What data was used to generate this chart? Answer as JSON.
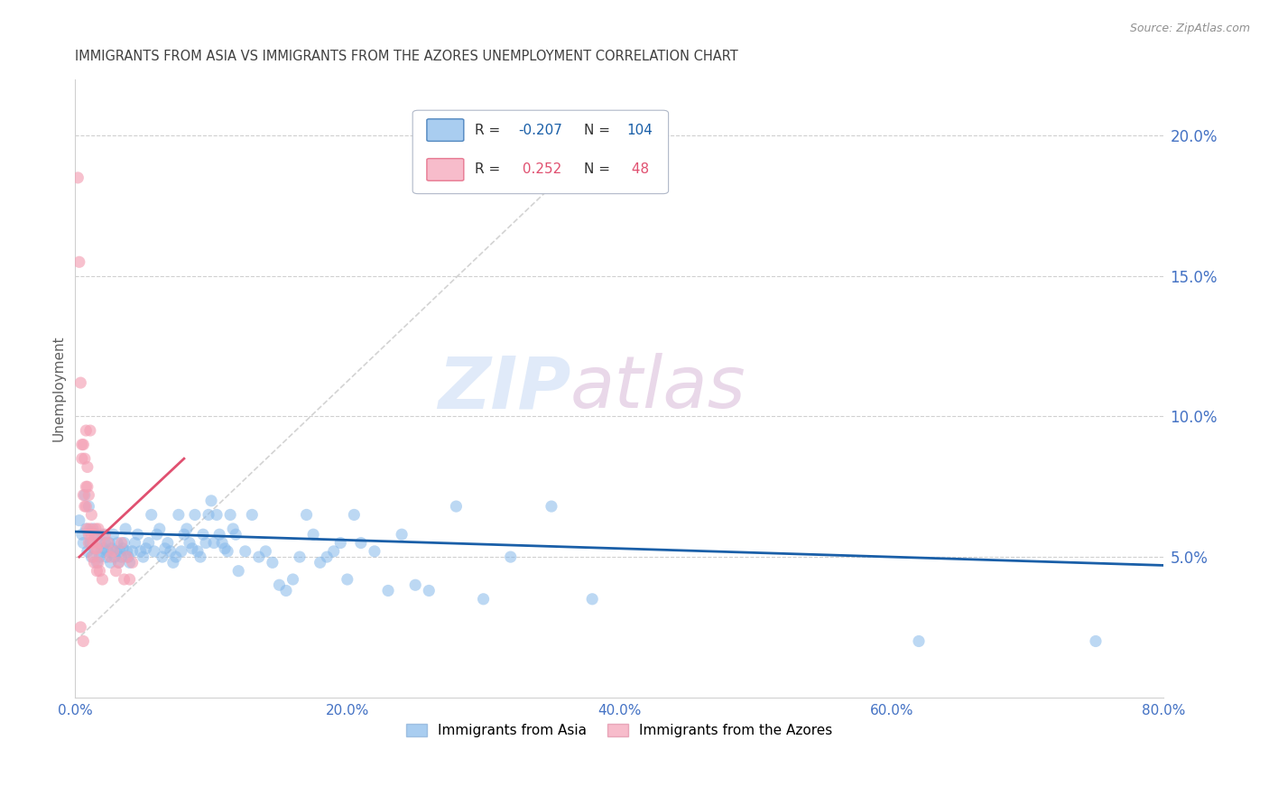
{
  "title": "IMMIGRANTS FROM ASIA VS IMMIGRANTS FROM THE AZORES UNEMPLOYMENT CORRELATION CHART",
  "source": "Source: ZipAtlas.com",
  "ylabel": "Unemployment",
  "x_min": 0.0,
  "x_max": 0.8,
  "y_min": 0.0,
  "y_max": 0.22,
  "x_ticks": [
    0.0,
    0.2,
    0.4,
    0.6,
    0.8
  ],
  "x_tick_labels": [
    "0.0%",
    "20.0%",
    "40.0%",
    "60.0%",
    "80.0%"
  ],
  "y_ticks": [
    0.05,
    0.1,
    0.15,
    0.2
  ],
  "y_tick_labels": [
    "5.0%",
    "10.0%",
    "15.0%",
    "20.0%"
  ],
  "blue_color": "#85b8ea",
  "pink_color": "#f4a0b5",
  "blue_line_color": "#1a5fa8",
  "pink_line_color": "#e05070",
  "diagonal_line_color": "#c8c8c8",
  "grid_color": "#d0d0d0",
  "title_color": "#404040",
  "axis_tick_color": "#4472c4",
  "blue_scatter": [
    [
      0.003,
      0.063
    ],
    [
      0.005,
      0.058
    ],
    [
      0.006,
      0.055
    ],
    [
      0.007,
      0.072
    ],
    [
      0.008,
      0.06
    ],
    [
      0.009,
      0.052
    ],
    [
      0.01,
      0.068
    ],
    [
      0.011,
      0.055
    ],
    [
      0.012,
      0.05
    ],
    [
      0.013,
      0.06
    ],
    [
      0.014,
      0.053
    ],
    [
      0.015,
      0.058
    ],
    [
      0.016,
      0.048
    ],
    [
      0.017,
      0.055
    ],
    [
      0.018,
      0.05
    ],
    [
      0.019,
      0.052
    ],
    [
      0.02,
      0.058
    ],
    [
      0.021,
      0.053
    ],
    [
      0.022,
      0.055
    ],
    [
      0.023,
      0.05
    ],
    [
      0.024,
      0.052
    ],
    [
      0.025,
      0.055
    ],
    [
      0.026,
      0.048
    ],
    [
      0.027,
      0.053
    ],
    [
      0.028,
      0.058
    ],
    [
      0.029,
      0.05
    ],
    [
      0.03,
      0.052
    ],
    [
      0.031,
      0.055
    ],
    [
      0.032,
      0.048
    ],
    [
      0.033,
      0.052
    ],
    [
      0.034,
      0.05
    ],
    [
      0.035,
      0.053
    ],
    [
      0.036,
      0.055
    ],
    [
      0.037,
      0.06
    ],
    [
      0.038,
      0.052
    ],
    [
      0.039,
      0.05
    ],
    [
      0.04,
      0.048
    ],
    [
      0.042,
      0.052
    ],
    [
      0.044,
      0.055
    ],
    [
      0.046,
      0.058
    ],
    [
      0.048,
      0.052
    ],
    [
      0.05,
      0.05
    ],
    [
      0.052,
      0.053
    ],
    [
      0.054,
      0.055
    ],
    [
      0.056,
      0.065
    ],
    [
      0.058,
      0.052
    ],
    [
      0.06,
      0.058
    ],
    [
      0.062,
      0.06
    ],
    [
      0.064,
      0.05
    ],
    [
      0.066,
      0.053
    ],
    [
      0.068,
      0.055
    ],
    [
      0.07,
      0.052
    ],
    [
      0.072,
      0.048
    ],
    [
      0.074,
      0.05
    ],
    [
      0.076,
      0.065
    ],
    [
      0.078,
      0.052
    ],
    [
      0.08,
      0.058
    ],
    [
      0.082,
      0.06
    ],
    [
      0.084,
      0.055
    ],
    [
      0.086,
      0.053
    ],
    [
      0.088,
      0.065
    ],
    [
      0.09,
      0.052
    ],
    [
      0.092,
      0.05
    ],
    [
      0.094,
      0.058
    ],
    [
      0.096,
      0.055
    ],
    [
      0.098,
      0.065
    ],
    [
      0.1,
      0.07
    ],
    [
      0.102,
      0.055
    ],
    [
      0.104,
      0.065
    ],
    [
      0.106,
      0.058
    ],
    [
      0.108,
      0.055
    ],
    [
      0.11,
      0.053
    ],
    [
      0.112,
      0.052
    ],
    [
      0.114,
      0.065
    ],
    [
      0.116,
      0.06
    ],
    [
      0.118,
      0.058
    ],
    [
      0.12,
      0.045
    ],
    [
      0.125,
      0.052
    ],
    [
      0.13,
      0.065
    ],
    [
      0.135,
      0.05
    ],
    [
      0.14,
      0.052
    ],
    [
      0.145,
      0.048
    ],
    [
      0.15,
      0.04
    ],
    [
      0.155,
      0.038
    ],
    [
      0.16,
      0.042
    ],
    [
      0.165,
      0.05
    ],
    [
      0.17,
      0.065
    ],
    [
      0.175,
      0.058
    ],
    [
      0.18,
      0.048
    ],
    [
      0.185,
      0.05
    ],
    [
      0.19,
      0.052
    ],
    [
      0.195,
      0.055
    ],
    [
      0.2,
      0.042
    ],
    [
      0.205,
      0.065
    ],
    [
      0.21,
      0.055
    ],
    [
      0.22,
      0.052
    ],
    [
      0.23,
      0.038
    ],
    [
      0.24,
      0.058
    ],
    [
      0.25,
      0.04
    ],
    [
      0.26,
      0.038
    ],
    [
      0.28,
      0.068
    ],
    [
      0.3,
      0.035
    ],
    [
      0.32,
      0.05
    ],
    [
      0.35,
      0.068
    ],
    [
      0.38,
      0.035
    ],
    [
      0.62,
      0.02
    ],
    [
      0.75,
      0.02
    ]
  ],
  "pink_scatter": [
    [
      0.002,
      0.185
    ],
    [
      0.003,
      0.155
    ],
    [
      0.004,
      0.112
    ],
    [
      0.005,
      0.09
    ],
    [
      0.005,
      0.085
    ],
    [
      0.006,
      0.09
    ],
    [
      0.006,
      0.072
    ],
    [
      0.007,
      0.068
    ],
    [
      0.007,
      0.085
    ],
    [
      0.008,
      0.075
    ],
    [
      0.008,
      0.068
    ],
    [
      0.008,
      0.095
    ],
    [
      0.009,
      0.075
    ],
    [
      0.009,
      0.082
    ],
    [
      0.009,
      0.06
    ],
    [
      0.01,
      0.058
    ],
    [
      0.01,
      0.072
    ],
    [
      0.01,
      0.055
    ],
    [
      0.011,
      0.095
    ],
    [
      0.011,
      0.06
    ],
    [
      0.012,
      0.058
    ],
    [
      0.012,
      0.065
    ],
    [
      0.013,
      0.055
    ],
    [
      0.013,
      0.05
    ],
    [
      0.014,
      0.048
    ],
    [
      0.014,
      0.058
    ],
    [
      0.015,
      0.053
    ],
    [
      0.015,
      0.06
    ],
    [
      0.016,
      0.053
    ],
    [
      0.016,
      0.045
    ],
    [
      0.017,
      0.048
    ],
    [
      0.017,
      0.06
    ],
    [
      0.018,
      0.055
    ],
    [
      0.018,
      0.045
    ],
    [
      0.02,
      0.042
    ],
    [
      0.022,
      0.058
    ],
    [
      0.024,
      0.055
    ],
    [
      0.026,
      0.05
    ],
    [
      0.028,
      0.052
    ],
    [
      0.03,
      0.045
    ],
    [
      0.032,
      0.048
    ],
    [
      0.034,
      0.055
    ],
    [
      0.036,
      0.042
    ],
    [
      0.038,
      0.05
    ],
    [
      0.04,
      0.042
    ],
    [
      0.042,
      0.048
    ],
    [
      0.004,
      0.025
    ],
    [
      0.006,
      0.02
    ]
  ],
  "blue_trend_x": [
    0.0,
    0.8
  ],
  "blue_trend_y": [
    0.059,
    0.047
  ],
  "pink_trend_x": [
    0.003,
    0.08
  ],
  "pink_trend_y": [
    0.05,
    0.085
  ]
}
